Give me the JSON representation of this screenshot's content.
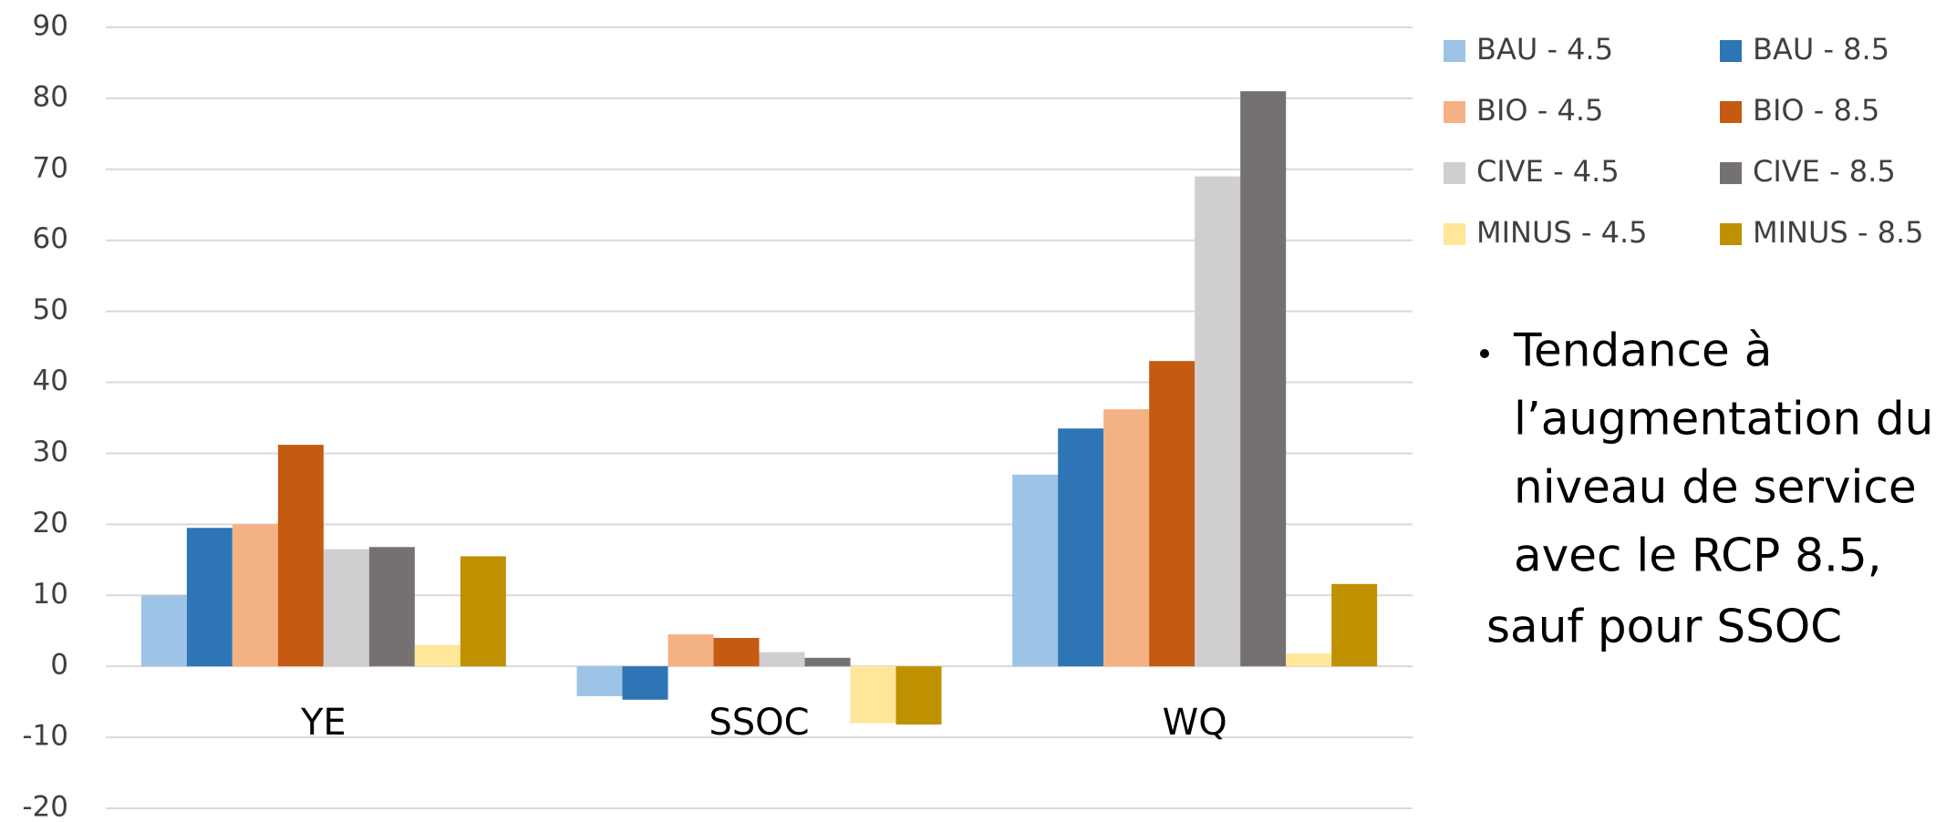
{
  "chart_data": {
    "type": "bar",
    "categories": [
      "YE",
      "SSOC",
      "WQ"
    ],
    "series": [
      {
        "name": "BAU - 4.5",
        "color": "#9dc3e6",
        "values": [
          10,
          -4.2,
          27
        ]
      },
      {
        "name": "BAU - 8.5",
        "color": "#2e75b6",
        "values": [
          19.5,
          -4.7,
          33.5
        ]
      },
      {
        "name": "BIO - 4.5",
        "color": "#f4b183",
        "values": [
          20,
          4.5,
          36.2
        ]
      },
      {
        "name": "BIO - 8.5",
        "color": "#c55a11",
        "values": [
          31.2,
          4,
          43
        ]
      },
      {
        "name": "CIVE - 4.5",
        "color": "#d0cece",
        "values": [
          16.5,
          2,
          69
        ]
      },
      {
        "name": "CIVE - 8.5",
        "color": "#767171",
        "values": [
          16.8,
          1.2,
          81
        ]
      },
      {
        "name": "MINUS - 4.5",
        "color": "#ffe699",
        "values": [
          3,
          -8,
          1.8
        ]
      },
      {
        "name": "MINUS - 8.5",
        "color": "#bf9000",
        "values": [
          15.5,
          -8.2,
          11.6
        ]
      }
    ],
    "ylim": [
      -20,
      90
    ],
    "yticks": [
      -20,
      -10,
      0,
      10,
      20,
      30,
      40,
      50,
      60,
      70,
      80,
      90
    ],
    "grid": true,
    "legend": "right",
    "annotation": {
      "bullet": [
        "Tendance à",
        "l’augmentation du",
        "niveau de service",
        "avec le RCP 8.5,"
      ],
      "after": "sauf pour SSOC"
    }
  }
}
